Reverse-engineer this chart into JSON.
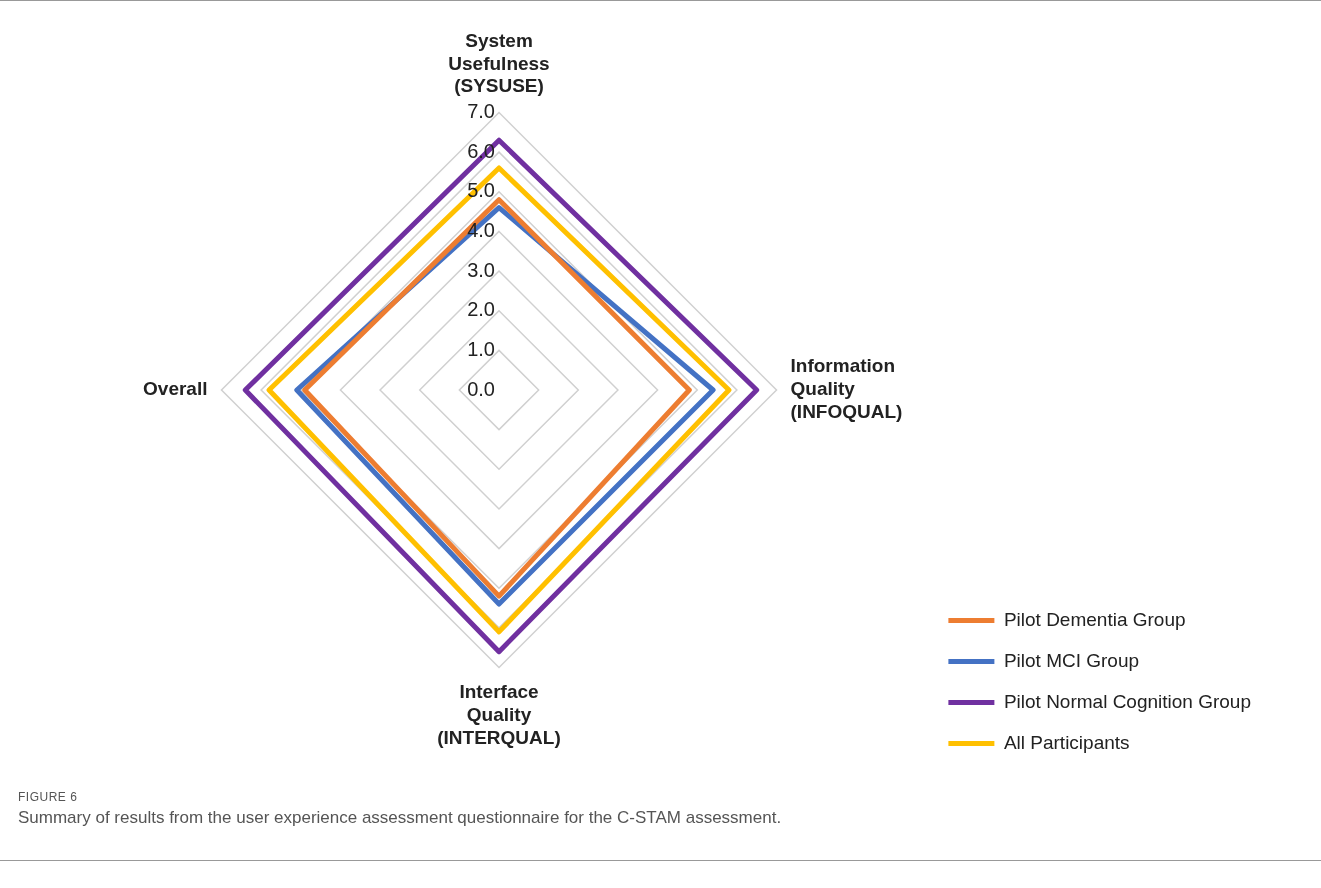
{
  "chart_data": {
    "type": "radar",
    "categories": [
      "System Usefulness (SYSUSE)",
      "Information Quality (INFOQUAL)",
      "Interface Quality (INTERQUAL)",
      "Overall"
    ],
    "series": [
      {
        "name": "Pilot Dementia Group",
        "color": "#ed7d31",
        "values": [
          4.8,
          4.8,
          5.2,
          4.9
        ]
      },
      {
        "name": "Pilot MCI Group",
        "color": "#4472c4",
        "values": [
          4.6,
          5.4,
          5.4,
          5.1
        ]
      },
      {
        "name": "Pilot Normal Cognition Group",
        "color": "#7030a0",
        "values": [
          6.3,
          6.5,
          6.6,
          6.4
        ]
      },
      {
        "name": "All Participants",
        "color": "#ffc000",
        "values": [
          5.6,
          5.8,
          6.1,
          5.8
        ]
      }
    ],
    "ylim": [
      0,
      7
    ],
    "yticks": [
      {
        "value": 0,
        "label": "0.0"
      },
      {
        "value": 1,
        "label": "1.0"
      },
      {
        "value": 2,
        "label": "2.0"
      },
      {
        "value": 3,
        "label": "3.0"
      },
      {
        "value": 4,
        "label": "4.0"
      },
      {
        "value": 5,
        "label": "5.0"
      },
      {
        "value": 6,
        "label": "6.0"
      },
      {
        "value": 7,
        "label": "7.0"
      }
    ],
    "grid": true,
    "legend": "bottom right",
    "marker": "none",
    "line_style": "solid",
    "annotations": [
      "FIGURE 6",
      "Summary of results from the user experience assessment questionnaire for the C-STAM assessment."
    ]
  }
}
